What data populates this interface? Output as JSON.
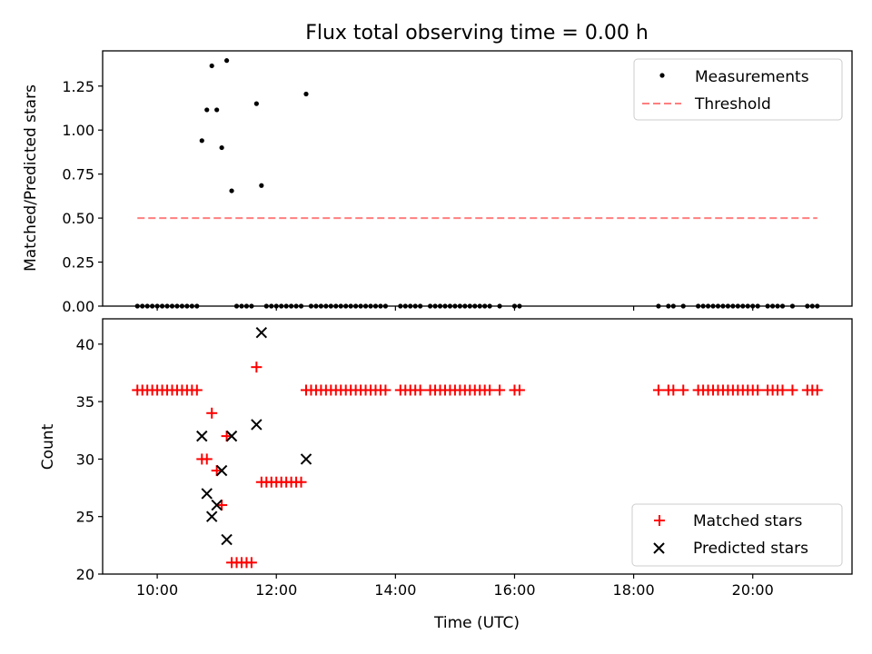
{
  "colors": {
    "measurements": "#000000",
    "threshold": "#ff7f7f",
    "matched": "#ff0000",
    "predicted": "#000000"
  },
  "chart_data": [
    {
      "type": "scatter",
      "title": "Flux total observing time = 0.00 h",
      "xlabel": "",
      "ylabel": "Matched/Predicted stars",
      "xlim": [
        "09:05",
        "21:40"
      ],
      "ylim": [
        0,
        1.45
      ],
      "xticks": [
        "10:00",
        "12:00",
        "14:00",
        "16:00",
        "18:00",
        "20:00"
      ],
      "yticks": [
        "0.00",
        "0.25",
        "0.50",
        "0.75",
        "1.00",
        "1.25"
      ],
      "grid": false,
      "legend_position": "top-right",
      "legend": [
        "Measurements",
        "Threshold"
      ],
      "series": [
        {
          "name": "Measurements",
          "marker": "dot",
          "points": [
            [
              "10:45",
              0.94
            ],
            [
              "10:50",
              1.115
            ],
            [
              "10:55",
              1.365
            ],
            [
              "11:00",
              1.115
            ],
            [
              "11:05",
              0.9
            ],
            [
              "11:10",
              1.395
            ],
            [
              "11:15",
              0.655
            ],
            [
              "11:40",
              1.15
            ],
            [
              "11:45",
              0.685
            ],
            [
              "12:30",
              1.205
            ]
          ],
          "zero_times": [
            "09:40",
            "09:45",
            "09:50",
            "09:55",
            "10:00",
            "10:05",
            "10:10",
            "10:15",
            "10:20",
            "10:25",
            "10:30",
            "10:35",
            "10:40",
            "11:20",
            "11:25",
            "11:30",
            "11:35",
            "11:50",
            "11:55",
            "12:00",
            "12:05",
            "12:10",
            "12:15",
            "12:20",
            "12:25",
            "12:35",
            "12:40",
            "12:45",
            "12:50",
            "12:55",
            "13:00",
            "13:05",
            "13:10",
            "13:15",
            "13:20",
            "13:25",
            "13:30",
            "13:35",
            "13:40",
            "13:45",
            "13:50",
            "14:05",
            "14:10",
            "14:15",
            "14:20",
            "14:25",
            "14:35",
            "14:40",
            "14:45",
            "14:50",
            "14:55",
            "15:00",
            "15:05",
            "15:10",
            "15:15",
            "15:20",
            "15:25",
            "15:30",
            "15:35",
            "15:45",
            "16:00",
            "16:05",
            "18:25",
            "18:35",
            "18:40",
            "18:50",
            "19:05",
            "19:10",
            "19:15",
            "19:20",
            "19:25",
            "19:30",
            "19:35",
            "19:40",
            "19:45",
            "19:50",
            "19:55",
            "20:00",
            "20:05",
            "20:15",
            "20:20",
            "20:25",
            "20:30",
            "20:40",
            "20:55",
            "21:00",
            "21:05"
          ]
        },
        {
          "name": "Threshold",
          "line": "dashed",
          "x": [
            "09:40",
            "21:05"
          ],
          "y": [
            0.5,
            0.5
          ]
        }
      ]
    },
    {
      "type": "scatter",
      "title": "",
      "xlabel": "Time (UTC)",
      "ylabel": "Count",
      "xlim": [
        "09:05",
        "21:40"
      ],
      "ylim": [
        20,
        42.2
      ],
      "xticks": [
        "10:00",
        "12:00",
        "14:00",
        "16:00",
        "18:00",
        "20:00"
      ],
      "yticks": [
        "20",
        "25",
        "30",
        "35",
        "40"
      ],
      "grid": false,
      "legend_position": "bottom-right",
      "legend": [
        "Matched stars",
        "Predicted stars"
      ],
      "series": [
        {
          "name": "Matched stars",
          "marker": "plus",
          "points": [
            [
              "09:40",
              36
            ],
            [
              "09:45",
              36
            ],
            [
              "09:50",
              36
            ],
            [
              "09:55",
              36
            ],
            [
              "10:00",
              36
            ],
            [
              "10:05",
              36
            ],
            [
              "10:10",
              36
            ],
            [
              "10:15",
              36
            ],
            [
              "10:20",
              36
            ],
            [
              "10:25",
              36
            ],
            [
              "10:30",
              36
            ],
            [
              "10:35",
              36
            ],
            [
              "10:40",
              36
            ],
            [
              "10:45",
              30
            ],
            [
              "10:50",
              30
            ],
            [
              "10:55",
              34
            ],
            [
              "11:00",
              29
            ],
            [
              "11:05",
              26
            ],
            [
              "11:10",
              32
            ],
            [
              "11:15",
              21
            ],
            [
              "11:20",
              21
            ],
            [
              "11:25",
              21
            ],
            [
              "11:30",
              21
            ],
            [
              "11:35",
              21
            ],
            [
              "11:40",
              38
            ],
            [
              "11:45",
              28
            ],
            [
              "11:50",
              28
            ],
            [
              "11:55",
              28
            ],
            [
              "12:00",
              28
            ],
            [
              "12:05",
              28
            ],
            [
              "12:10",
              28
            ],
            [
              "12:15",
              28
            ],
            [
              "12:20",
              28
            ],
            [
              "12:25",
              28
            ],
            [
              "12:30",
              36
            ],
            [
              "12:35",
              36
            ],
            [
              "12:40",
              36
            ],
            [
              "12:45",
              36
            ],
            [
              "12:50",
              36
            ],
            [
              "12:55",
              36
            ],
            [
              "13:00",
              36
            ],
            [
              "13:05",
              36
            ],
            [
              "13:10",
              36
            ],
            [
              "13:15",
              36
            ],
            [
              "13:20",
              36
            ],
            [
              "13:25",
              36
            ],
            [
              "13:30",
              36
            ],
            [
              "13:35",
              36
            ],
            [
              "13:40",
              36
            ],
            [
              "13:45",
              36
            ],
            [
              "13:50",
              36
            ],
            [
              "14:05",
              36
            ],
            [
              "14:10",
              36
            ],
            [
              "14:15",
              36
            ],
            [
              "14:20",
              36
            ],
            [
              "14:25",
              36
            ],
            [
              "14:35",
              36
            ],
            [
              "14:40",
              36
            ],
            [
              "14:45",
              36
            ],
            [
              "14:50",
              36
            ],
            [
              "14:55",
              36
            ],
            [
              "15:00",
              36
            ],
            [
              "15:05",
              36
            ],
            [
              "15:10",
              36
            ],
            [
              "15:15",
              36
            ],
            [
              "15:20",
              36
            ],
            [
              "15:25",
              36
            ],
            [
              "15:30",
              36
            ],
            [
              "15:35",
              36
            ],
            [
              "15:45",
              36
            ],
            [
              "16:00",
              36
            ],
            [
              "16:05",
              36
            ],
            [
              "18:25",
              36
            ],
            [
              "18:35",
              36
            ],
            [
              "18:40",
              36
            ],
            [
              "18:50",
              36
            ],
            [
              "19:05",
              36
            ],
            [
              "19:10",
              36
            ],
            [
              "19:15",
              36
            ],
            [
              "19:20",
              36
            ],
            [
              "19:25",
              36
            ],
            [
              "19:30",
              36
            ],
            [
              "19:35",
              36
            ],
            [
              "19:40",
              36
            ],
            [
              "19:45",
              36
            ],
            [
              "19:50",
              36
            ],
            [
              "19:55",
              36
            ],
            [
              "20:00",
              36
            ],
            [
              "20:05",
              36
            ],
            [
              "20:15",
              36
            ],
            [
              "20:20",
              36
            ],
            [
              "20:25",
              36
            ],
            [
              "20:30",
              36
            ],
            [
              "20:40",
              36
            ],
            [
              "20:55",
              36
            ],
            [
              "21:00",
              36
            ],
            [
              "21:05",
              36
            ]
          ]
        },
        {
          "name": "Predicted stars",
          "marker": "x",
          "points": [
            [
              "10:45",
              32
            ],
            [
              "10:50",
              27
            ],
            [
              "10:55",
              25
            ],
            [
              "11:00",
              26
            ],
            [
              "11:05",
              29
            ],
            [
              "11:10",
              23
            ],
            [
              "11:15",
              32
            ],
            [
              "11:40",
              33
            ],
            [
              "11:45",
              41
            ],
            [
              "12:30",
              30
            ]
          ]
        }
      ]
    }
  ]
}
